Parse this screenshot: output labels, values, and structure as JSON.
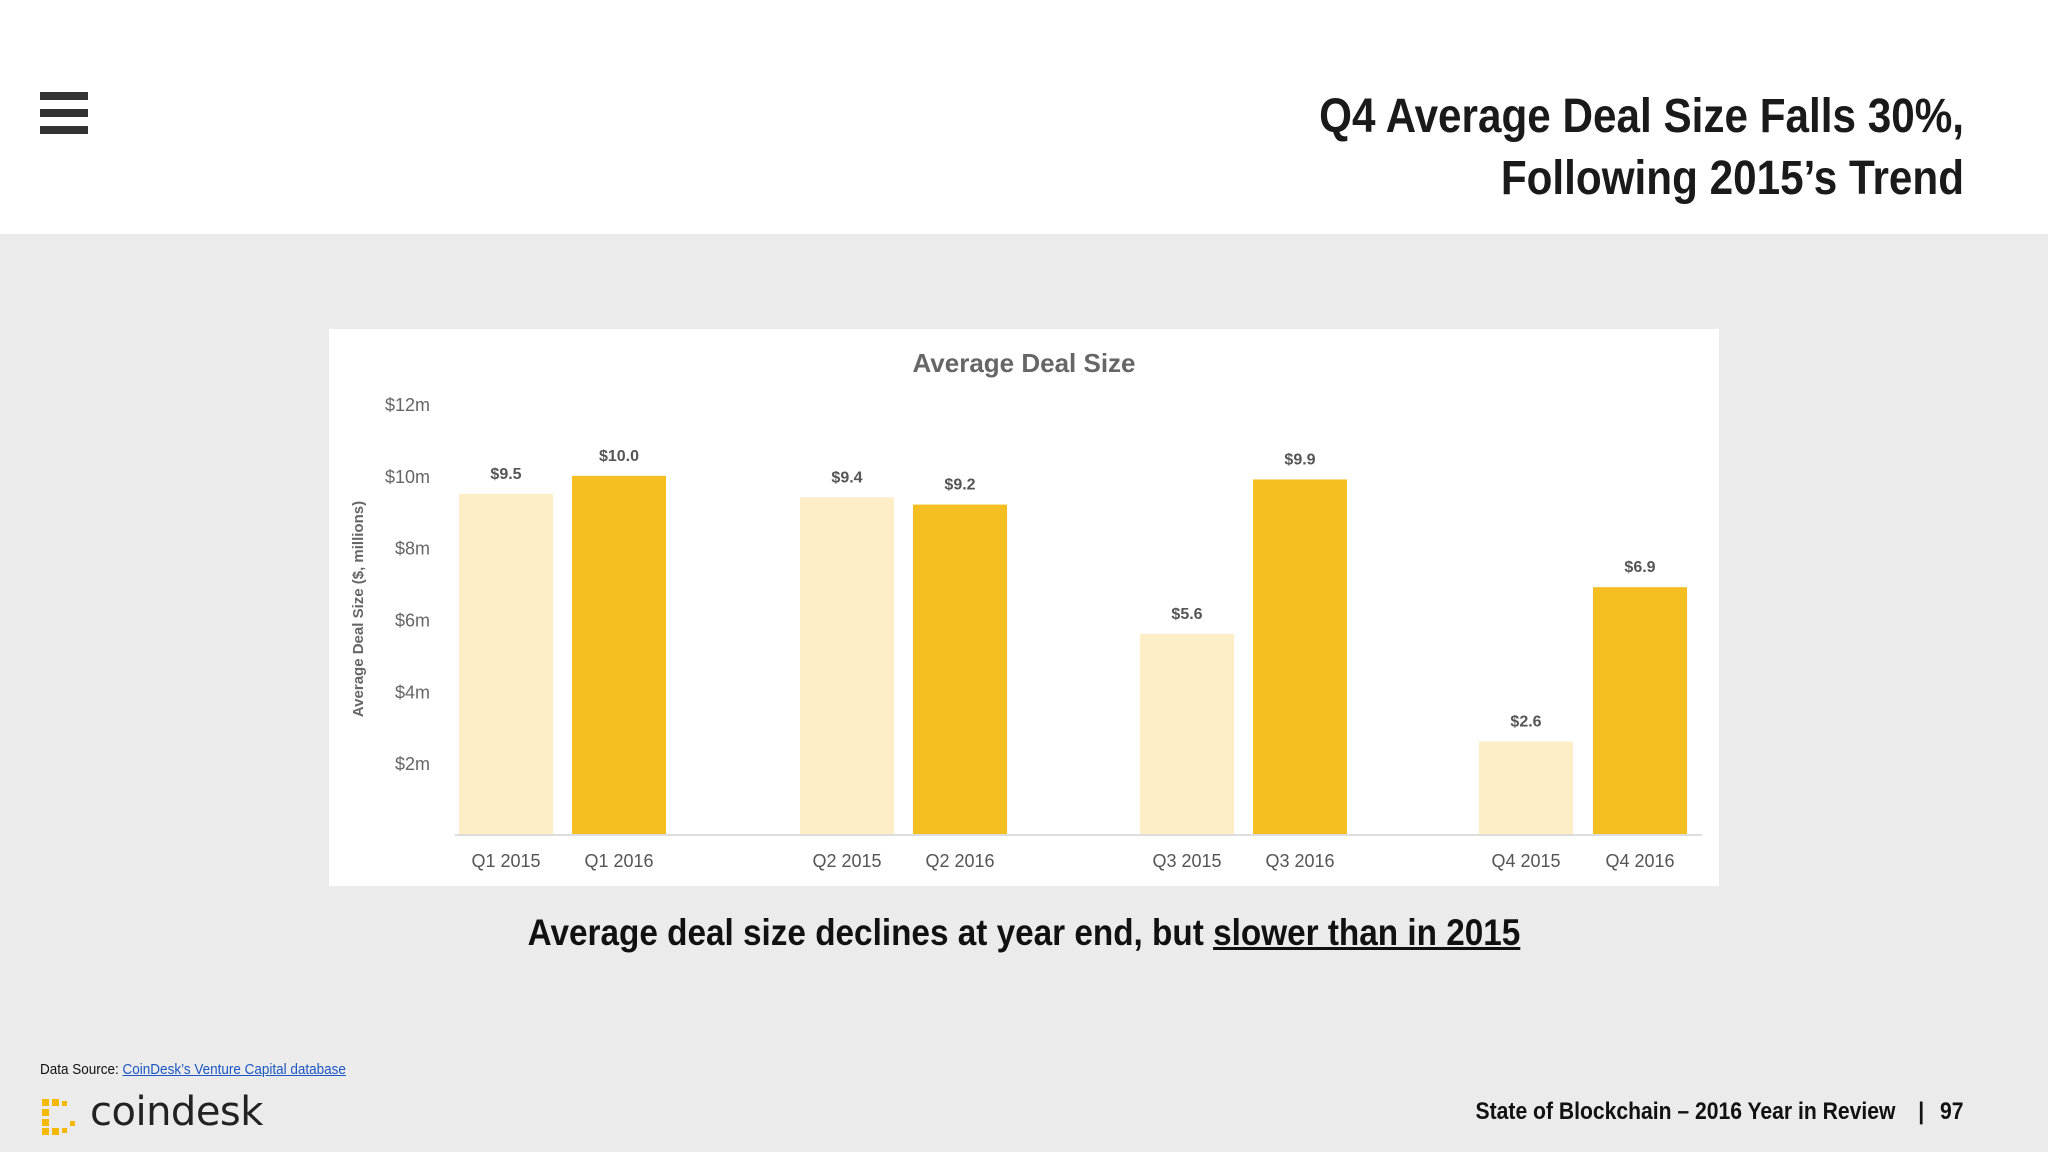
{
  "header": {
    "title_line1": "Q4 Average Deal Size Falls 30%,",
    "title_line2": "Following 2015’s Trend"
  },
  "caption": {
    "prefix": "Average deal size declines at year end, but ",
    "emphasis": "slower than in 2015"
  },
  "source": {
    "label": "Data Source: ",
    "link_text": "CoinDesk’s Venture Capital database"
  },
  "logo": {
    "text": "coindesk",
    "color": "#f5b800"
  },
  "footer": {
    "report": "State of Blockchain – 2016 Year in Review",
    "separator": "|",
    "page_number": "97"
  },
  "chart_data": {
    "type": "bar",
    "title": "Average Deal Size",
    "ylabel": "Average Deal Size  ($, millions)",
    "xlabel": "",
    "ylim": [
      0,
      12
    ],
    "y_ticks": [
      "$2m",
      "$4m",
      "$6m",
      "$8m",
      "$10m",
      "$12m"
    ],
    "y_tick_values": [
      2,
      4,
      6,
      8,
      10,
      12
    ],
    "categories": [
      "Q1 2015",
      "Q1 2016",
      "Q2 2015",
      "Q2 2016",
      "Q3 2015",
      "Q3 2016",
      "Q4 2015",
      "Q4 2016"
    ],
    "values": [
      9.5,
      10.0,
      9.4,
      9.2,
      5.6,
      9.9,
      2.6,
      6.9
    ],
    "value_labels": [
      "$9.5",
      "$10.0",
      "$9.4",
      "$9.2",
      "$5.6",
      "$9.9",
      "$2.6",
      "$6.9"
    ],
    "series_colors": {
      "2015": "#fdeec8",
      "2016": "#f5bf22"
    },
    "grid": false,
    "legend": "none"
  }
}
